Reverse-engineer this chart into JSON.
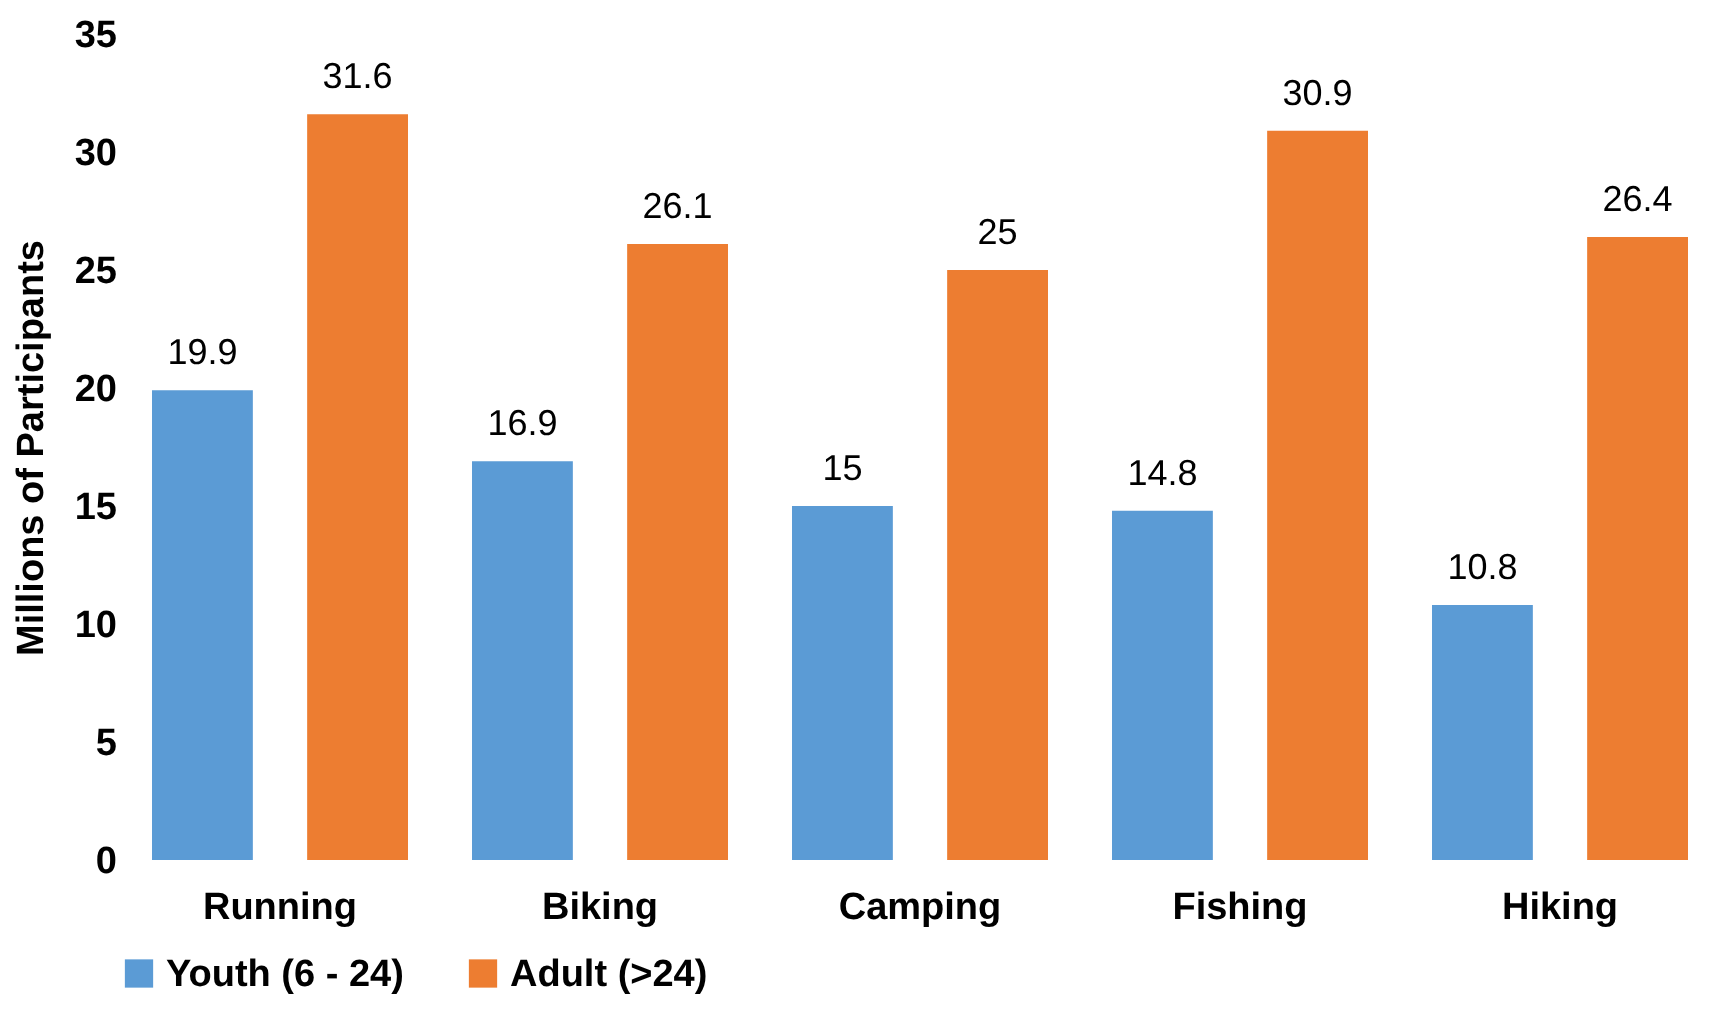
{
  "chart_data": {
    "type": "bar",
    "ylabel": "Millions of Participants",
    "categories": [
      "Running",
      "Biking",
      "Camping",
      "Fishing",
      "Hiking"
    ],
    "series": [
      {
        "name": "Youth (6 - 24)",
        "color": "#5b9bd5",
        "values": [
          19.9,
          16.9,
          15,
          14.8,
          10.8
        ]
      },
      {
        "name": "Adult (>24)",
        "color": "#ed7d31",
        "values": [
          31.6,
          26.1,
          25,
          30.9,
          26.4
        ]
      }
    ],
    "ylim": [
      0,
      35
    ],
    "yticks": [
      0,
      5,
      10,
      15,
      20,
      25,
      30,
      35
    ],
    "grid": false,
    "legend": "bottom",
    "data_labels": true
  }
}
